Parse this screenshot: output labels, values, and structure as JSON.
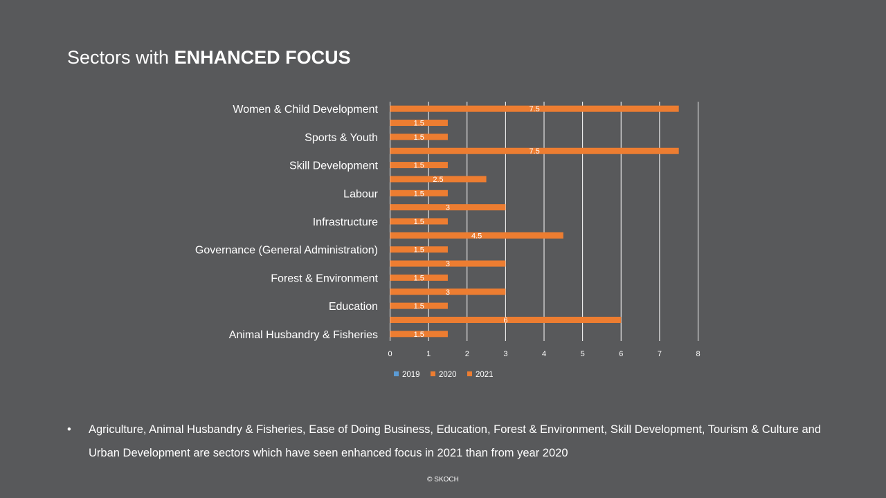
{
  "slide": {
    "title_regular": "Sectors with ",
    "title_bold": "ENHANCED FOCUS",
    "bullet_symbol": "•",
    "bullet_text": "Agriculture, Animal Husbandry & Fisheries, Ease of Doing Business, Education, Forest & Environment, Skill Development, Tourism & Culture and Urban Development are sectors which have seen enhanced focus in 2021 than from year 2020",
    "footer": "© SKOCH"
  },
  "colors": {
    "background": "#58595b",
    "text": "#ffffff",
    "gridline": "#ffffff",
    "series_2019": "#5b9bd5",
    "series_2020": "#ed7d31",
    "series_2021": "#ed7d31"
  },
  "chart_data": {
    "type": "bar",
    "orientation": "horizontal",
    "categories": [
      "Women & Child Development",
      "",
      "Sports & Youth",
      "",
      "Skill Development",
      "",
      "Labour",
      "",
      "Infrastructure",
      "",
      "Governance (General Administration)",
      "",
      "Forest & Environment",
      "",
      "Education",
      "",
      "Animal Husbandry & Fisheries"
    ],
    "values": [
      7.5,
      1.5,
      1.5,
      7.5,
      1.5,
      2.5,
      1.5,
      3,
      1.5,
      4.5,
      1.5,
      3,
      1.5,
      3,
      1.5,
      6,
      1.5
    ],
    "data_labels": [
      "7.5",
      "1.5",
      "1.5",
      "7.5",
      "1.5",
      "2.5",
      "1.5",
      "3",
      "1.5",
      "4.5",
      "1.5",
      "3",
      "1.5",
      "3",
      "1.5",
      "6",
      "1.5"
    ],
    "series_legend": [
      {
        "name": "2019",
        "color": "#5b9bd5"
      },
      {
        "name": "2020",
        "color": "#ed7d31"
      },
      {
        "name": "2021",
        "color": "#ed7d31"
      }
    ],
    "xlim": [
      0,
      8
    ],
    "xticks": [
      0,
      1,
      2,
      3,
      4,
      5,
      6,
      7,
      8
    ],
    "grid": "vertical",
    "legend_position": "bottom"
  }
}
